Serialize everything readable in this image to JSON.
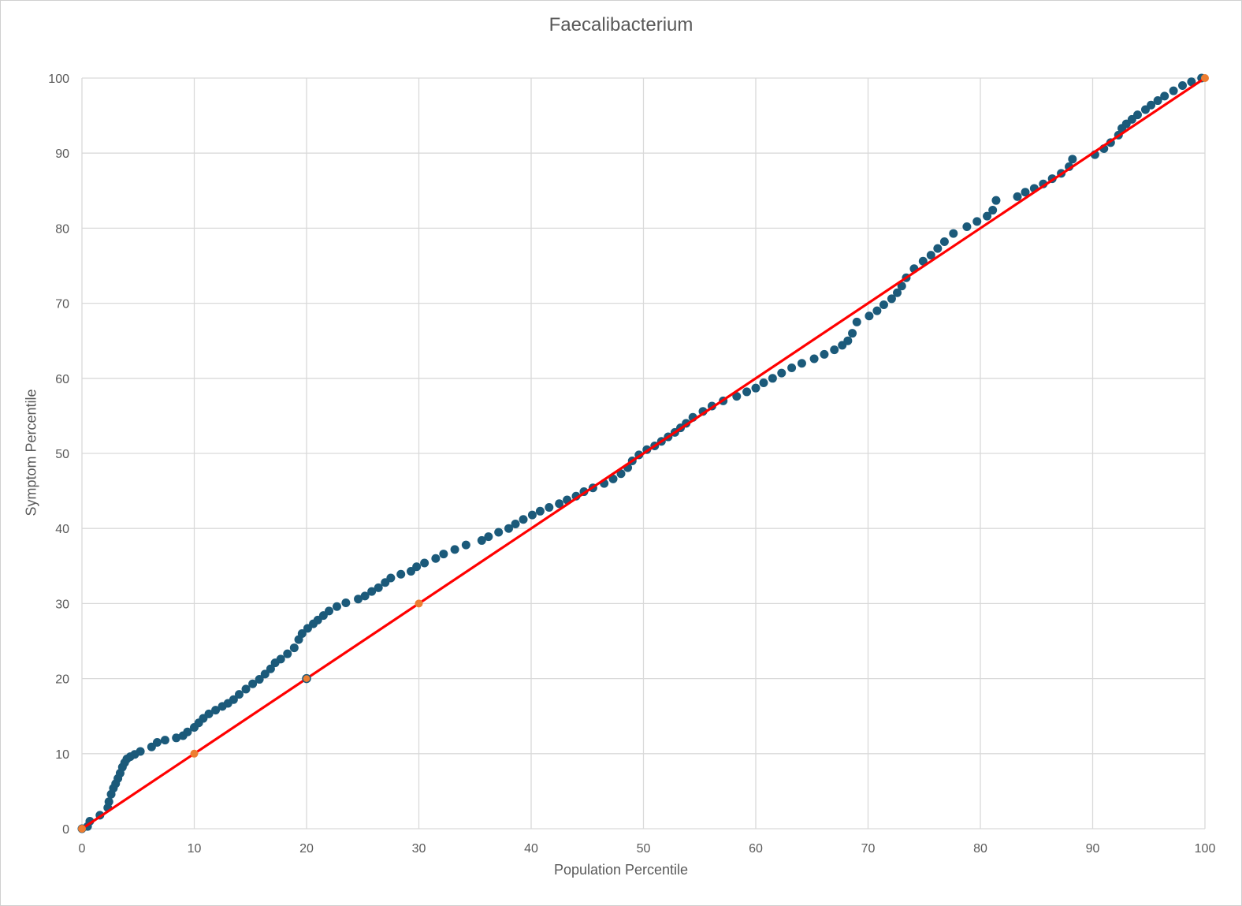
{
  "chart_data": {
    "type": "scatter",
    "title": "Faecalibacterium",
    "xlabel": "Population Percentile",
    "ylabel": "Symptom Percentile",
    "xlim": [
      0,
      100
    ],
    "ylim": [
      0,
      100
    ],
    "xticks": [
      0,
      10,
      20,
      30,
      40,
      50,
      60,
      70,
      80,
      90,
      100
    ],
    "yticks": [
      0,
      10,
      20,
      30,
      40,
      50,
      60,
      70,
      80,
      90,
      100
    ],
    "grid": true,
    "legend": "none",
    "colors": {
      "points": "#1b5a7a",
      "line": "#ff0000",
      "markers": "#ed7d31",
      "grid": "#d9d9d9"
    },
    "reference_line": {
      "x": [
        0,
        100
      ],
      "y": [
        0,
        100
      ]
    },
    "reference_markers": {
      "x": [
        0,
        10,
        20,
        30,
        100
      ],
      "y": [
        0,
        10,
        20,
        30,
        100
      ]
    },
    "series": [
      {
        "x": [
          0,
          0.5,
          0.7,
          1.6,
          2.3,
          2.4,
          2.6,
          2.8,
          3.0,
          3.2,
          3.4,
          3.6,
          3.8,
          4.0,
          4.3,
          4.7,
          5.2,
          6.2,
          6.7,
          7.4,
          8.4,
          9.0,
          9.4,
          10.0,
          10.4,
          10.8,
          11.3,
          11.9,
          12.5,
          13.0,
          13.5,
          14.0,
          14.6,
          15.2,
          15.8,
          16.3,
          16.8,
          17.2,
          17.7,
          18.3,
          18.9,
          19.3,
          19.6,
          20.1,
          20.6,
          21.0,
          21.5,
          22.0,
          22.7,
          23.5,
          24.6,
          25.2,
          25.8,
          26.4,
          27.0,
          27.5,
          28.4,
          29.3,
          29.8,
          30.5,
          31.5,
          32.2,
          33.2,
          34.2,
          35.6,
          36.2,
          37.1,
          38.0,
          38.6,
          39.3,
          40.1,
          40.8,
          41.6,
          42.5,
          43.2,
          44.0,
          44.7,
          45.5,
          46.5,
          47.3,
          48.0,
          48.6,
          49.0,
          49.6,
          50.3,
          51.0,
          51.6,
          52.2,
          52.8,
          53.3,
          53.8,
          54.4,
          55.3,
          56.1,
          57.1,
          58.3,
          59.2,
          60.0,
          60.7,
          61.5,
          62.3,
          63.2,
          64.1,
          65.2,
          66.1,
          67.0,
          67.7,
          68.2,
          68.6,
          69.0,
          70.1,
          70.8,
          71.4,
          72.1,
          72.6,
          73.0,
          73.4,
          74.1,
          74.9,
          75.6,
          76.2,
          76.8,
          77.6,
          78.8,
          79.7,
          80.6,
          81.1,
          81.4,
          83.3,
          84.0,
          84.8,
          85.6,
          86.4,
          87.2,
          87.9,
          88.2,
          90.2,
          91.0,
          91.6,
          92.3,
          92.6,
          93.0,
          93.5,
          94.0,
          94.7,
          95.2,
          95.8,
          96.4,
          97.2,
          98.0,
          98.8,
          99.7
        ],
        "y": [
          0,
          0.3,
          1.0,
          1.8,
          2.8,
          3.6,
          4.6,
          5.4,
          6.0,
          6.7,
          7.4,
          8.2,
          8.8,
          9.3,
          9.6,
          9.9,
          10.3,
          10.9,
          11.5,
          11.8,
          12.1,
          12.4,
          12.9,
          13.5,
          14.1,
          14.7,
          15.3,
          15.8,
          16.3,
          16.7,
          17.2,
          17.9,
          18.6,
          19.3,
          19.9,
          20.6,
          21.3,
          22.1,
          22.6,
          23.3,
          24.1,
          25.2,
          26.0,
          26.7,
          27.3,
          27.8,
          28.4,
          29.0,
          29.6,
          30.1,
          30.6,
          31.0,
          31.6,
          32.1,
          32.8,
          33.4,
          33.9,
          34.3,
          34.9,
          35.4,
          36.0,
          36.6,
          37.2,
          37.8,
          38.4,
          38.9,
          39.5,
          40.0,
          40.6,
          41.2,
          41.8,
          42.3,
          42.8,
          43.3,
          43.8,
          44.3,
          44.9,
          45.4,
          46.0,
          46.6,
          47.3,
          48.1,
          49.0,
          49.8,
          50.5,
          51.0,
          51.6,
          52.2,
          52.8,
          53.4,
          54.0,
          54.8,
          55.6,
          56.3,
          57.0,
          57.6,
          58.2,
          58.7,
          59.4,
          60.0,
          60.7,
          61.4,
          62.0,
          62.6,
          63.2,
          63.8,
          64.4,
          65.0,
          66.0,
          67.5,
          68.3,
          69.0,
          69.8,
          70.6,
          71.4,
          72.3,
          73.4,
          74.6,
          75.6,
          76.4,
          77.3,
          78.2,
          79.3,
          80.2,
          80.9,
          81.6,
          82.4,
          83.7,
          84.2,
          84.8,
          85.3,
          85.9,
          86.6,
          87.3,
          88.2,
          89.2,
          89.8,
          90.6,
          91.4,
          92.4,
          93.3,
          93.9,
          94.5,
          95.1,
          95.8,
          96.4,
          97.0,
          97.6,
          98.3,
          99.0,
          99.5,
          100
        ]
      }
    ]
  }
}
